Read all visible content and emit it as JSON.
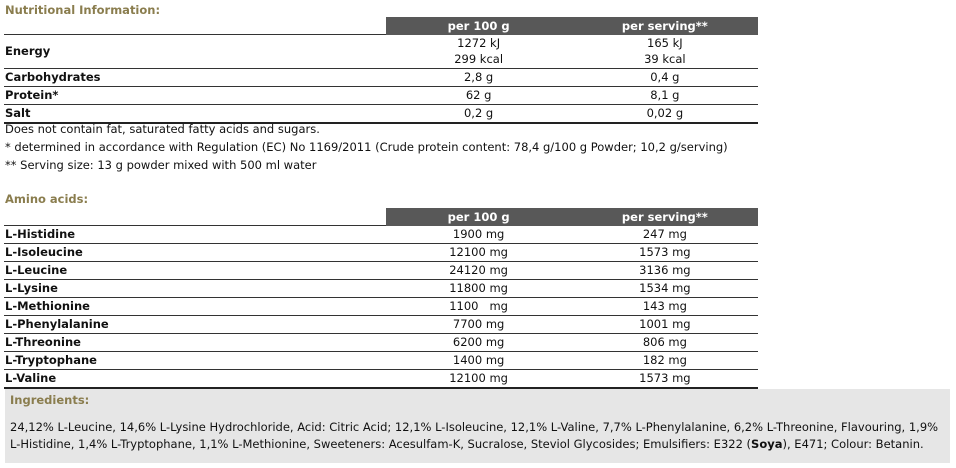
{
  "nutrition": {
    "title": "Nutritional Information:",
    "col_per100": "per 100 g",
    "col_serving": "per serving**",
    "energy_label": "Energy",
    "energy_kj_100": "1272 kJ",
    "energy_kcal_100": "299 kcal",
    "energy_kj_serv": "165 kJ",
    "energy_kcal_serv": "39 kcal",
    "rows": [
      {
        "label": "Carbohydrates",
        "per100": "2,8 g",
        "serving": "0,4 g"
      },
      {
        "label": "Protein*",
        "per100": "62 g",
        "serving": "8,1 g"
      },
      {
        "label": "Salt",
        "per100": "0,2 g",
        "serving": "0,02 g"
      }
    ],
    "notes": [
      "Does not contain fat, saturated fatty acids and sugars.",
      "* determined in accordance with Regulation (EC) No 1169/2011 (Crude protein content: 78,4 g/100 g Powder; 10,2 g/serving)",
      "** Serving size: 13 g powder mixed with 500 ml water"
    ]
  },
  "amino": {
    "title": "Amino acids:",
    "col_per100": "per 100 g",
    "col_serving": "per serving**",
    "rows": [
      {
        "label": "L-Histidine",
        "per100": "1900 mg",
        "serving": "247 mg"
      },
      {
        "label": "L-Isoleucine",
        "per100": "12100 mg",
        "serving": "1573 mg"
      },
      {
        "label": "L-Leucine",
        "per100": "24120 mg",
        "serving": "3136 mg"
      },
      {
        "label": "L-Lysine",
        "per100": "11800 mg",
        "serving": "1534 mg"
      },
      {
        "label": "L-Methionine",
        "per100": "1100   mg",
        "serving": "143 mg"
      },
      {
        "label": "L-Phenylalanine",
        "per100": "7700 mg",
        "serving": "1001 mg"
      },
      {
        "label": "L-Threonine",
        "per100": "6200 mg",
        "serving": "806 mg"
      },
      {
        "label": "L-Tryptophane",
        "per100": "1400 mg",
        "serving": "182 mg"
      },
      {
        "label": "L-Valine",
        "per100": "12100 mg",
        "serving": "1573 mg"
      }
    ]
  },
  "ingredients": {
    "title": "Ingredients:",
    "text_before": "24,12% L-Leucine, 14,6% L-Lysine Hydrochloride, Acid: Citric Acid; 12,1% L-Isoleucine, 12,1% L-Valine, 7,7% L-Phenylalanine, 6,2% L-Threonine, Flavouring, 1,9% L-Histidine, 1,4% L-Tryptophane, 1,1% L-Methionine, Sweeteners: Acesulfam-K, Sucralose, Steviol Glycosides; Emulsifiers: E322 (",
    "allergen": "Soya",
    "text_after": "), E471; Colour: Betanin."
  }
}
